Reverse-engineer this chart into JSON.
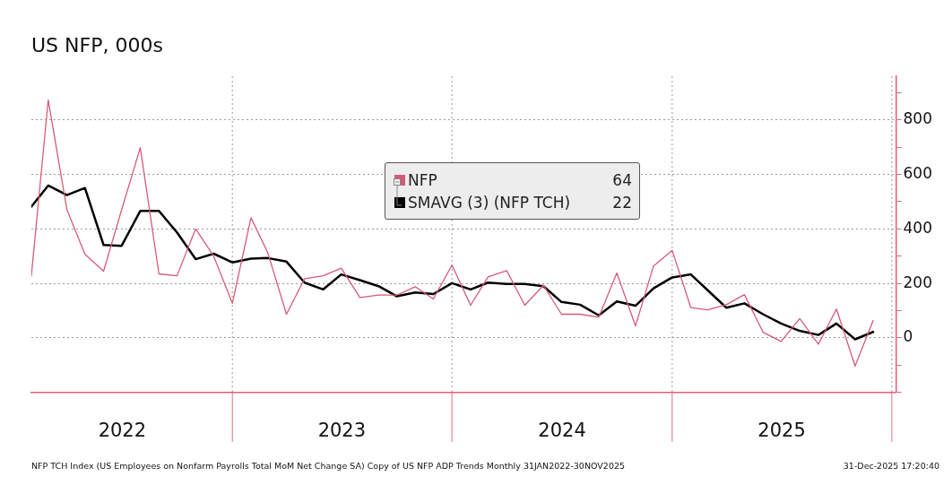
{
  "chart_data": {
    "type": "line",
    "title": "US NFP, 000s",
    "x": [
      "2022-01-31",
      "2022-02-28",
      "2022-03-31",
      "2022-04-30",
      "2022-05-31",
      "2022-06-30",
      "2022-07-31",
      "2022-08-31",
      "2022-09-30",
      "2022-10-31",
      "2022-11-30",
      "2022-12-31",
      "2023-01-31",
      "2023-02-28",
      "2023-03-31",
      "2023-04-30",
      "2023-05-31",
      "2023-06-30",
      "2023-07-31",
      "2023-08-31",
      "2023-09-30",
      "2023-10-31",
      "2023-11-30",
      "2023-12-31",
      "2024-01-31",
      "2024-02-29",
      "2024-03-31",
      "2024-04-30",
      "2024-05-31",
      "2024-06-30",
      "2024-07-31",
      "2024-08-31",
      "2024-09-30",
      "2024-10-31",
      "2024-11-30",
      "2024-12-31",
      "2025-01-31",
      "2025-02-28",
      "2025-03-31",
      "2025-04-30",
      "2025-05-31",
      "2025-06-30",
      "2025-07-31",
      "2025-08-31",
      "2025-09-30",
      "2025-10-31",
      "2025-11-30"
    ],
    "series": [
      {
        "name": "NFP",
        "color": "#d65a78",
        "values": [
          228,
          873,
          471,
          307,
          245,
          470,
          698,
          235,
          228,
          400,
          300,
          127,
          441,
          312,
          87,
          217,
          228,
          256,
          148,
          157,
          157,
          188,
          143,
          267,
          120,
          224,
          247,
          120,
          193,
          87,
          87,
          76,
          238,
          44,
          264,
          321,
          111,
          103,
          122,
          159,
          21,
          -13,
          71,
          -23,
          106,
          -103,
          64
        ]
      },
      {
        "name": "SMAVG (3) (NFP TCH)",
        "color": "#000000",
        "values": [
          482,
          559,
          524,
          550,
          341,
          338,
          466,
          466,
          387,
          289,
          309,
          277,
          291,
          293,
          280,
          203,
          178,
          233,
          212,
          190,
          153,
          167,
          161,
          201,
          178,
          203,
          198,
          198,
          190,
          132,
          122,
          83,
          134,
          118,
          182,
          222,
          233,
          175,
          111,
          127,
          87,
          53,
          26,
          11,
          53,
          -5,
          22
        ]
      }
    ],
    "xlim": [
      "2022-01-31",
      "2026-01-07"
    ],
    "xticks": [
      {
        "value": "2022-07-01",
        "label": "2022"
      },
      {
        "value": "2023-07-01",
        "label": "2023"
      },
      {
        "value": "2024-07-01",
        "label": "2024"
      },
      {
        "value": "2025-07-01",
        "label": "2025"
      }
    ],
    "ylim": [
      -200,
      960
    ],
    "yticks": [
      {
        "value": -200,
        "label": null
      },
      {
        "value": -100,
        "label": null
      },
      0,
      {
        "value": 100,
        "label": null
      },
      200,
      {
        "value": 300,
        "label": null
      },
      400,
      {
        "value": 500,
        "label": null
      },
      600,
      {
        "value": 700,
        "label": null
      },
      800,
      {
        "value": 900,
        "label": null
      }
    ],
    "ref_lines": [
      {
        "axis": "x",
        "value": "2022-12-31",
        "color": "#999999",
        "line_style": "dotted"
      },
      {
        "axis": "x",
        "value": "2023-12-31",
        "color": "#999999",
        "line_style": "dotted"
      },
      {
        "axis": "x",
        "value": "2024-12-31",
        "color": "#999999",
        "line_style": "dotted"
      },
      {
        "axis": "x",
        "value": "2025-12-31",
        "color": "#999999",
        "line_style": "dotted"
      }
    ],
    "grid": "y",
    "legend": "top",
    "marker": "none",
    "line_style": "solid",
    "annotations": [
      "NFP TCH Index (US Employees on Nonfarm Payrolls Total MoM Net Change SA) Copy of US NFP ADP Trends Monthly 31JAN2022-30NOV2025",
      "31-Dec-2025 17:20:40",
      "64",
      "22"
    ]
  }
}
